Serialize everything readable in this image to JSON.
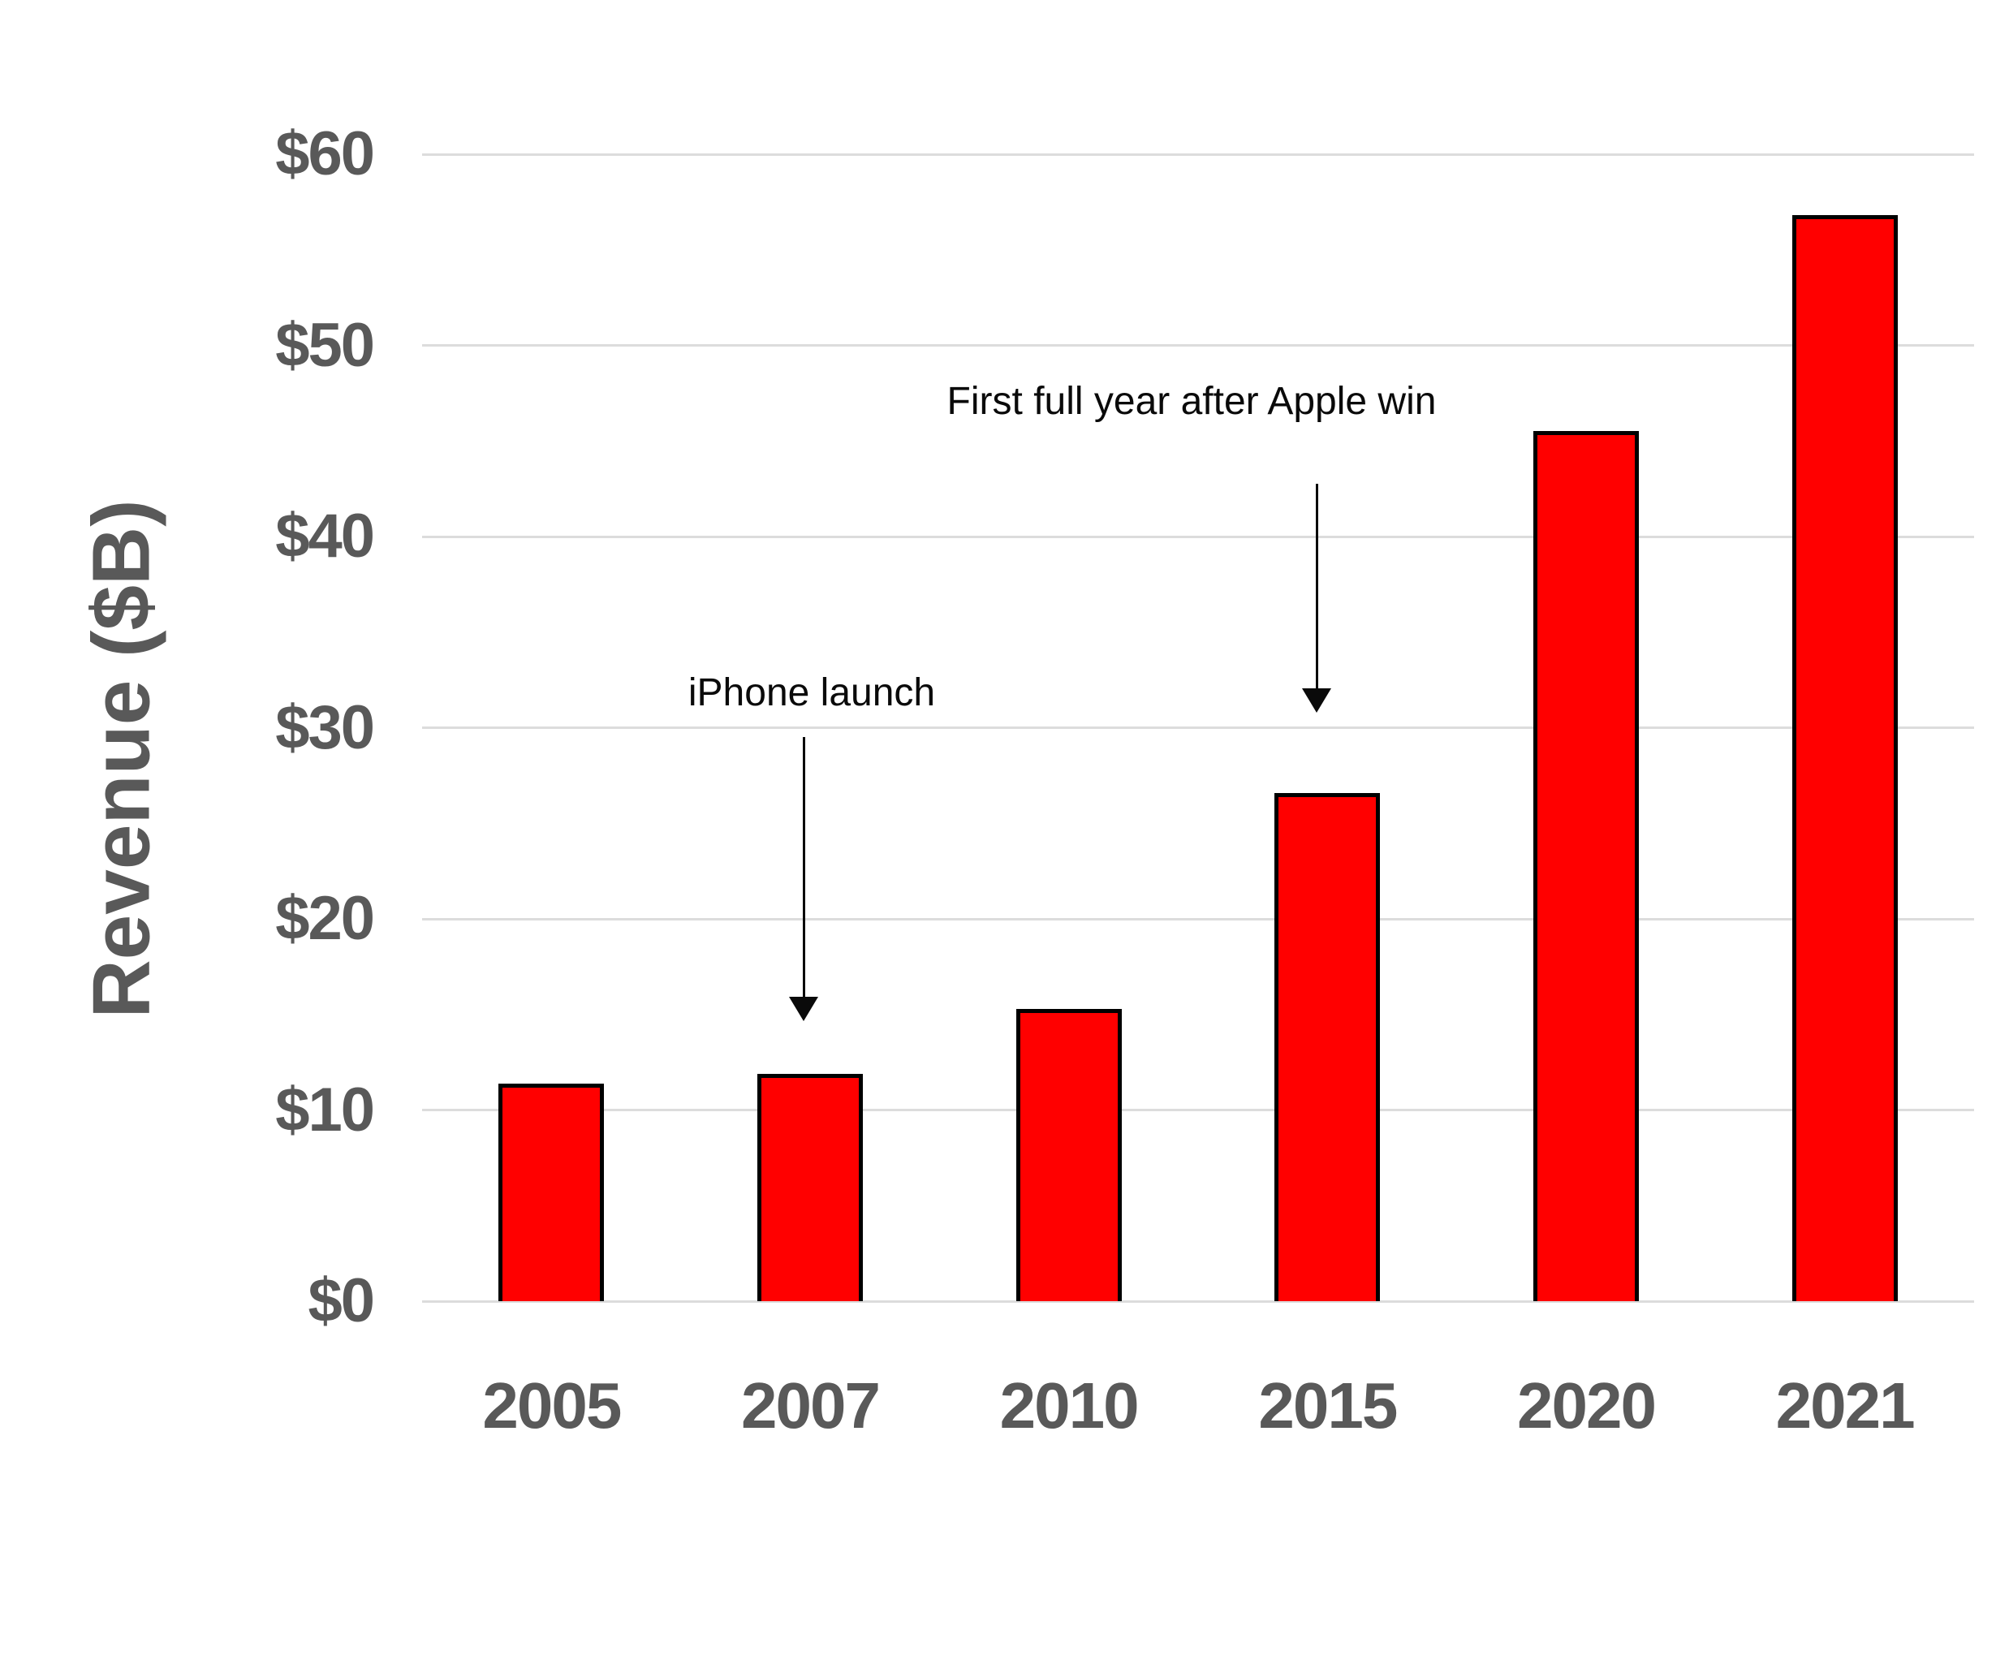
{
  "page": {
    "background": "#ffffff"
  },
  "chart_data": {
    "type": "bar",
    "title": "",
    "xlabel": "",
    "ylabel": "Revenue ($B)",
    "categories": [
      "2005",
      "2007",
      "2010",
      "2015",
      "2020",
      "2021"
    ],
    "values": [
      11.4,
      11.9,
      15.3,
      26.6,
      45.5,
      56.8
    ],
    "series_unit": "$B",
    "ylim": [
      0,
      60
    ],
    "yticks": [
      {
        "label": "$0",
        "value": 0
      },
      {
        "label": "$10",
        "value": 10
      },
      {
        "label": "$20",
        "value": 20
      },
      {
        "label": "$30",
        "value": 30
      },
      {
        "label": "$40",
        "value": 40
      },
      {
        "label": "$50",
        "value": 50
      },
      {
        "label": "$60",
        "value": 60
      }
    ],
    "grid": "horizontal",
    "legend": "none",
    "bar_fill": "#ff0000",
    "bar_edge": "#000000",
    "gridline_color": "#dcdcdc",
    "axis_text_color": "#595959",
    "annotation_color": "#0a0a0a",
    "annotations": [
      {
        "text": "iPhone launch",
        "target_category": "2007",
        "arrow": "down"
      },
      {
        "text": "First full year after Apple win",
        "target_category": "2015",
        "arrow": "down"
      }
    ]
  }
}
